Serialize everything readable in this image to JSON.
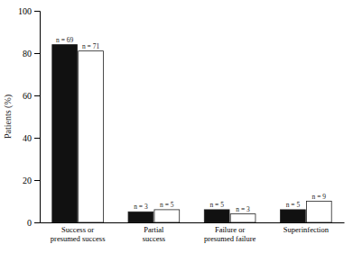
{
  "chart_data": {
    "type": "bar",
    "ylabel": "Patients (%)",
    "categories": [
      "Success or\npresumed success",
      "Partial\nsuccess",
      "Failure or\npresumed failure",
      "Superinfection"
    ],
    "series": [
      {
        "color": "#111111",
        "values": [
          84,
          5,
          6,
          6
        ],
        "annotations": [
          "n = 69",
          "n = 3",
          "n = 5",
          "n = 5"
        ]
      },
      {
        "color": "#ffffff",
        "values": [
          81,
          6,
          4,
          10
        ],
        "annotations": [
          "n = 71",
          "n = 5",
          "n = 3",
          "n = 9"
        ]
      }
    ],
    "ylim": [
      0,
      100
    ],
    "yticks": [
      0,
      20,
      40,
      60,
      80,
      100
    ],
    "grid": false
  }
}
